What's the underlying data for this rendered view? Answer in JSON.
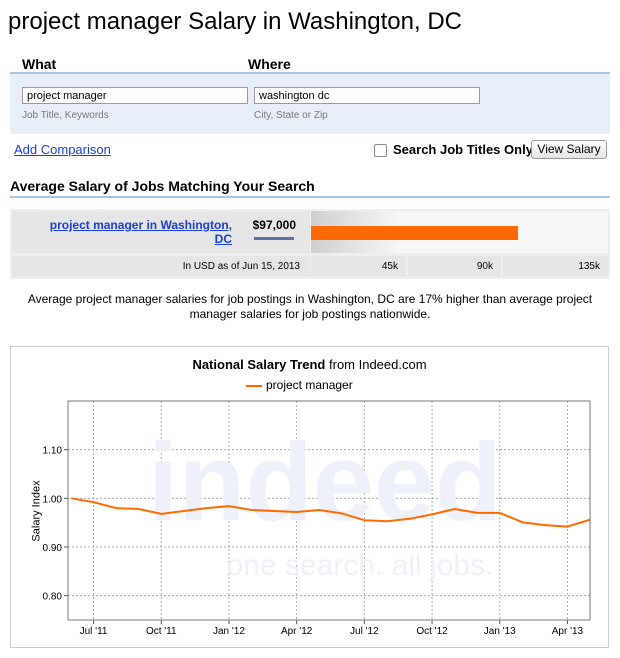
{
  "page": {
    "title": "project manager Salary in Washington, DC"
  },
  "search": {
    "what_label": "What",
    "where_label": "Where",
    "what_value": "project manager",
    "where_value": "washington dc",
    "what_hint": "Job Title, Keywords",
    "where_hint": "City, State or Zip",
    "add_comparison": "Add Comparison",
    "job_titles_only_label": "Search Job Titles Only",
    "job_titles_only_checked": false,
    "view_salary_label": "View Salary"
  },
  "results": {
    "heading": "Average Salary of Jobs Matching Your Search",
    "result_link": "project manager in Washington, DC",
    "salary": "$97,000",
    "salary_amount": 97000,
    "currency_note": "In USD as of Jun 15, 2013",
    "scale_ticks": [
      "45k",
      "90k",
      "135k"
    ],
    "scale_max": 135000,
    "summary": "Average project manager salaries for job postings in Washington, DC are 17% higher than average project manager salaries for job postings nationwide."
  },
  "chart_data": {
    "type": "line",
    "title": "National Salary Trend",
    "title_suffix": "from Indeed.com",
    "ylabel": "Salary Index",
    "ylim": [
      0.75,
      1.2
    ],
    "yticks": [
      "1.10",
      "1.00",
      "0.90",
      "0.80"
    ],
    "x_ticks": [
      "Jul '11",
      "Oct '11",
      "Jan '12",
      "Apr '12",
      "Jul '12",
      "Oct '12",
      "Jan '13",
      "Apr '13"
    ],
    "grid": true,
    "legend_position": "top-center",
    "watermark": "indeed one search. all jobs.",
    "series": [
      {
        "name": "project manager",
        "color": "#ff6a00",
        "x": [
          "Jun 2011",
          "Jul 2011",
          "Aug 2011",
          "Sep 2011",
          "Oct 2011",
          "Nov 2011",
          "Dec 2011",
          "Jan 2012",
          "Feb 2012",
          "Mar 2012",
          "Apr 2012",
          "May 2012",
          "Jun 2012",
          "Jul 2012",
          "Aug 2012",
          "Sep 2012",
          "Oct 2012",
          "Nov 2012",
          "Dec 2012",
          "Jan 2013",
          "Feb 2013",
          "Mar 2013",
          "Apr 2013",
          "May 2013"
        ],
        "values": [
          1.0,
          0.992,
          0.98,
          0.978,
          0.968,
          0.974,
          0.98,
          0.984,
          0.976,
          0.974,
          0.972,
          0.976,
          0.969,
          0.955,
          0.953,
          0.958,
          0.967,
          0.978,
          0.97,
          0.97,
          0.951,
          0.945,
          0.942,
          0.956
        ]
      }
    ]
  }
}
